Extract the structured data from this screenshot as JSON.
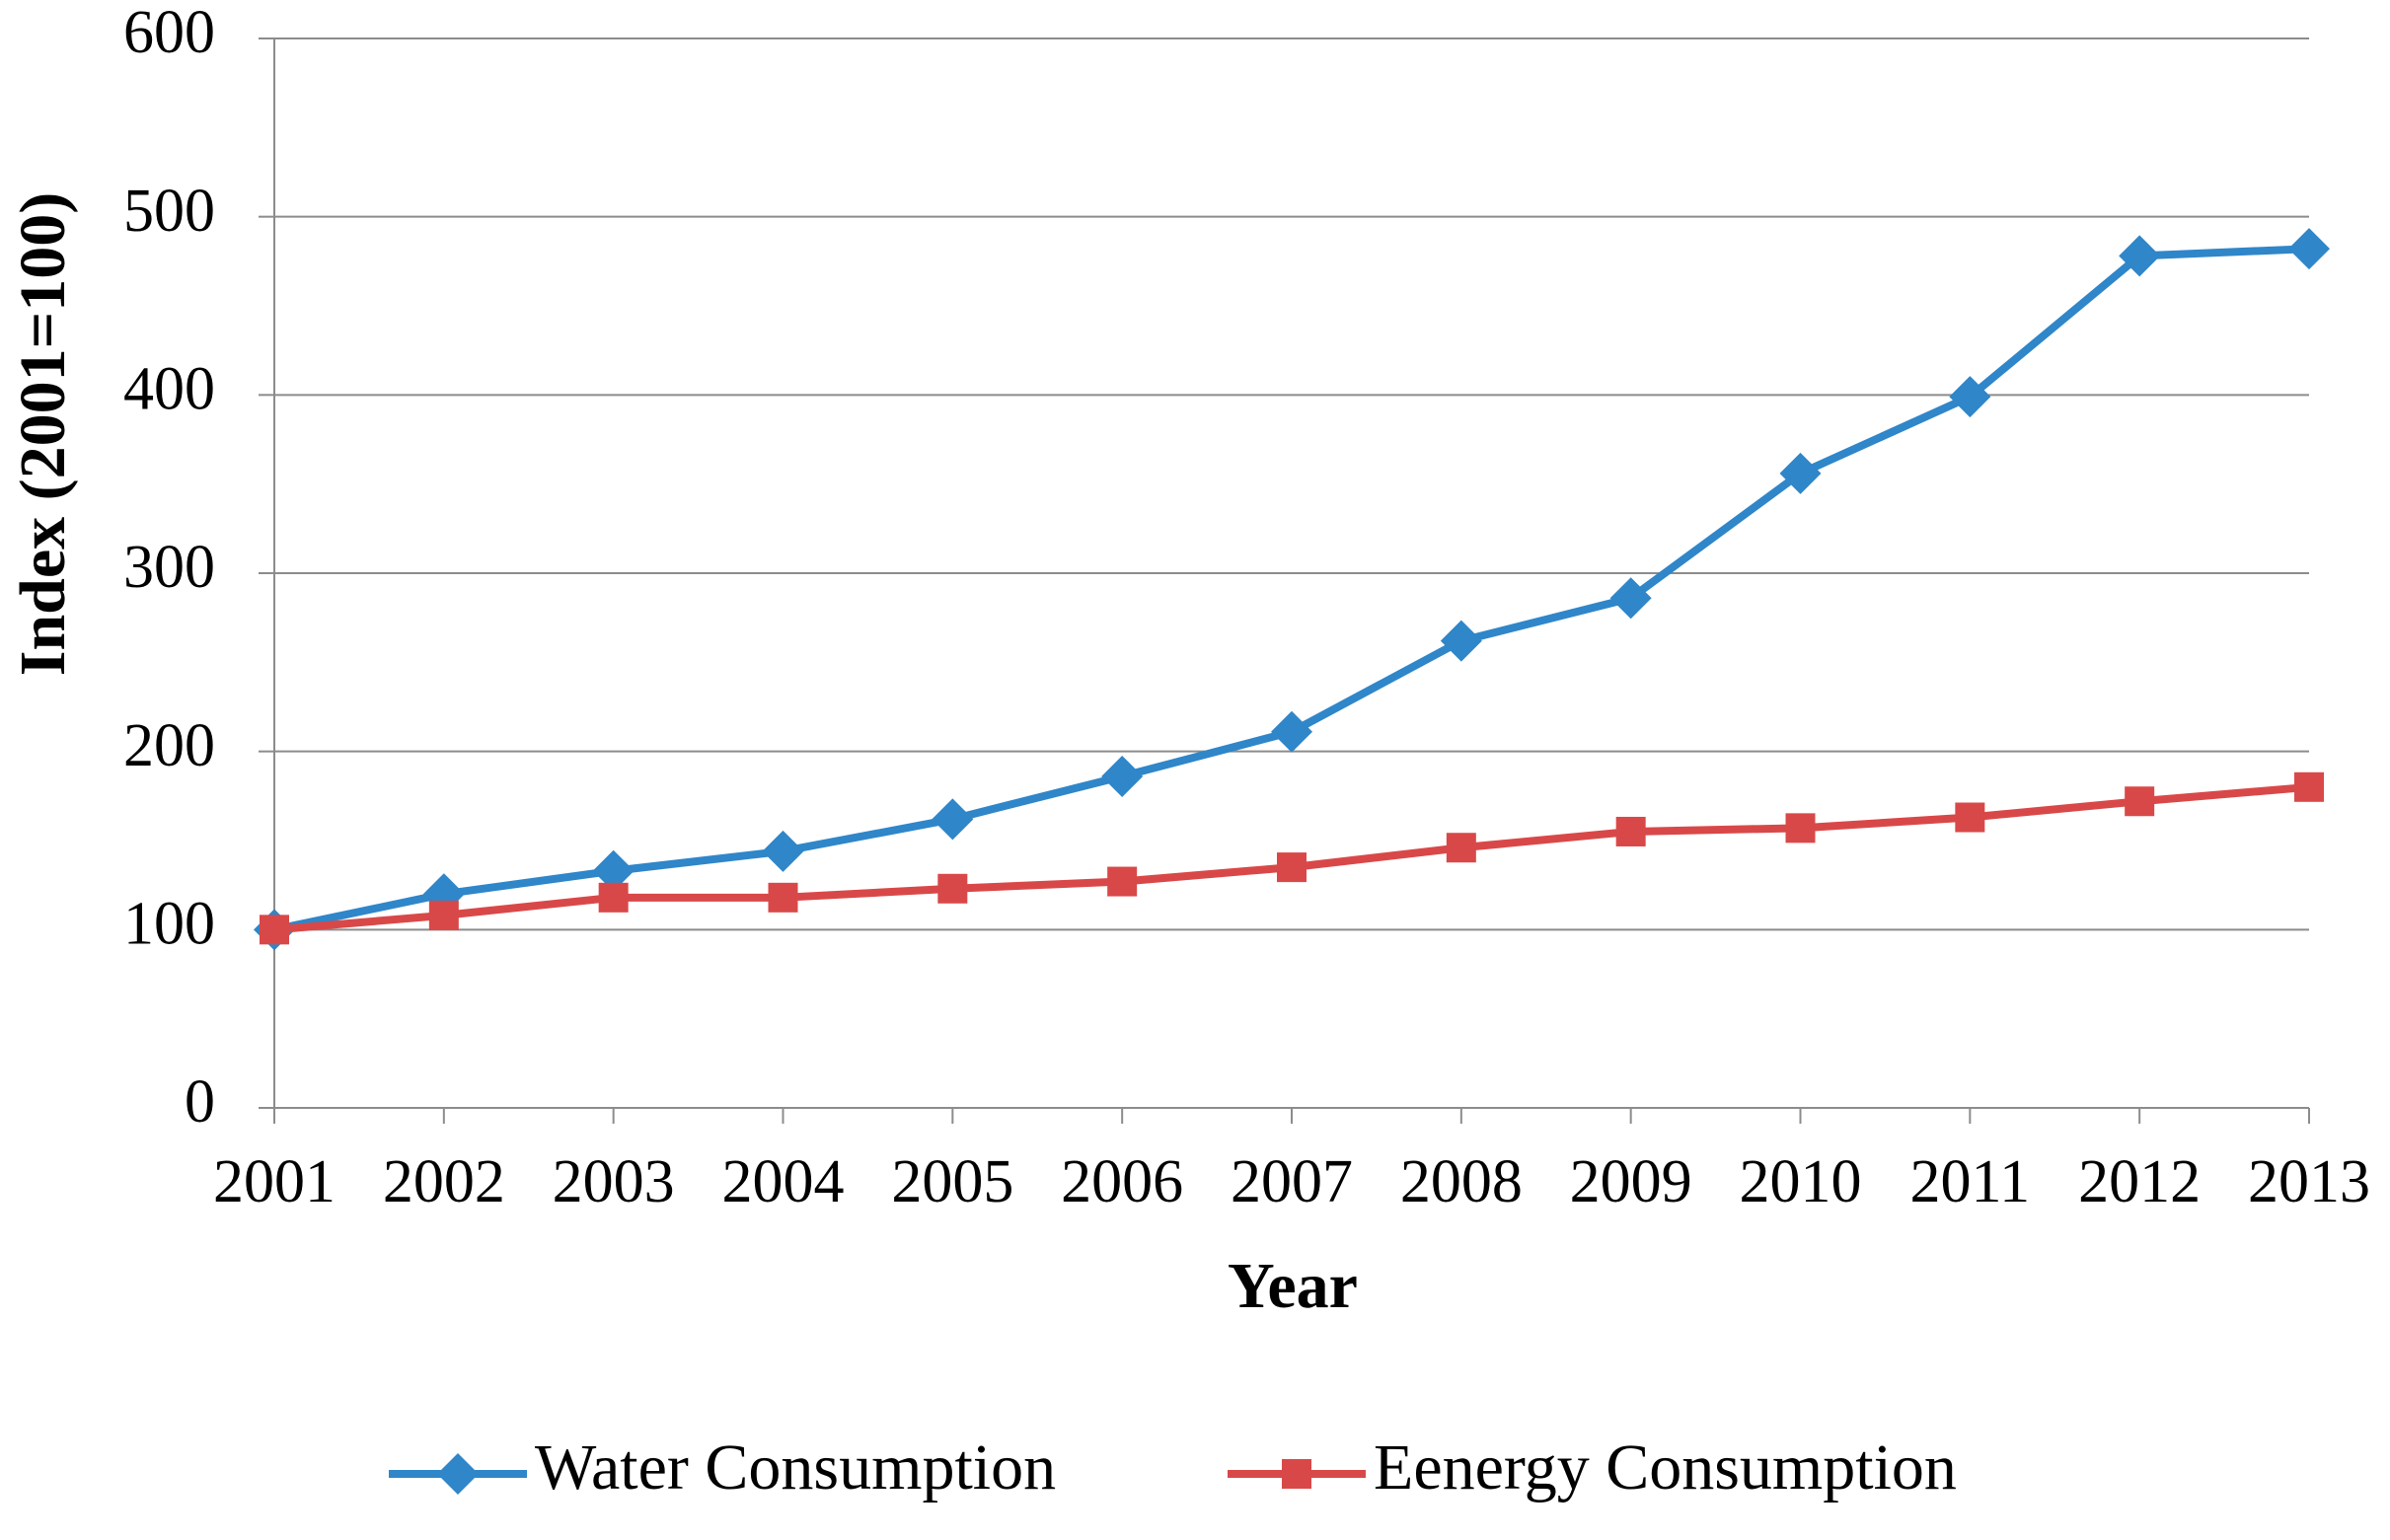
{
  "chart_data": {
    "type": "line",
    "x_label": "Year",
    "y_label": "Index (2001=100)",
    "categories": [
      "2001",
      "2002",
      "2003",
      "2004",
      "2005",
      "2006",
      "2007",
      "2008",
      "2009",
      "2010",
      "2011",
      "2012",
      "2013"
    ],
    "series": [
      {
        "name": "Water Consumption",
        "color": "#2f86c9",
        "marker": "diamond",
        "values": [
          100,
          120,
          133,
          144,
          162,
          186,
          211,
          262,
          286,
          356,
          399,
          478,
          482
        ]
      },
      {
        "name": "Eenergy Consumption",
        "color": "#d94848",
        "marker": "square",
        "values": [
          100,
          108,
          118,
          118,
          123,
          127,
          135,
          146,
          155,
          157,
          163,
          172,
          180
        ]
      }
    ],
    "ylim": [
      0,
      600
    ],
    "yticks": [
      0,
      100,
      200,
      300,
      400,
      500,
      600
    ],
    "grid": true,
    "legend": "bottom"
  }
}
